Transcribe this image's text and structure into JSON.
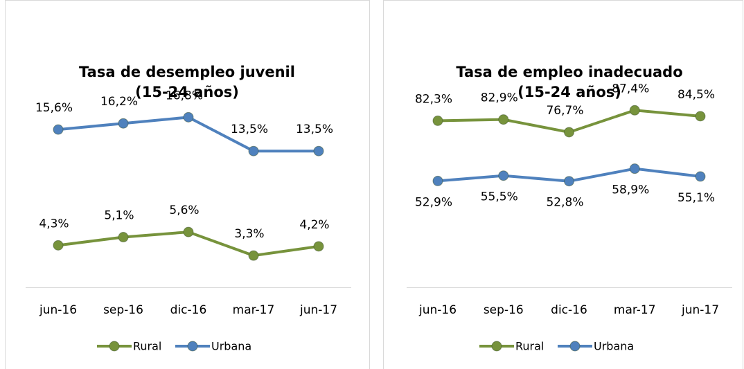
{
  "chart_data": [
    {
      "type": "line",
      "title": [
        "Tasa de desempleo juvenil",
        "(15-24 años)"
      ],
      "categories": [
        "jun-16",
        "sep-16",
        "dic-16",
        "mar-17",
        "jun-17"
      ],
      "ylim": [
        0,
        20
      ],
      "series": [
        {
          "name": "Rural",
          "color": "#77933c",
          "values": [
            4.3,
            5.1,
            5.6,
            3.3,
            4.2
          ],
          "value_labels": [
            "4,3%",
            "5,1%",
            "5,6%",
            "3,3%",
            "4,2%"
          ]
        },
        {
          "name": "Urbana",
          "color": "#4f81bd",
          "values": [
            15.6,
            16.2,
            16.8,
            13.5,
            13.5
          ],
          "value_labels": [
            "15,6%",
            "16,2%",
            "16,8%",
            "13,5%",
            "13,5%"
          ]
        }
      ]
    },
    {
      "type": "line",
      "title": [
        "Tasa de empleo inadecuado",
        "(15-24 años)"
      ],
      "categories": [
        "jun-16",
        "sep-16",
        "dic-16",
        "mar-17",
        "jun-17"
      ],
      "ylim": [
        0,
        100
      ],
      "series": [
        {
          "name": "Rural",
          "color": "#77933c",
          "values": [
            82.3,
            82.9,
            76.7,
            87.4,
            84.5
          ],
          "value_labels": [
            "82,3%",
            "82,9%",
            "76,7%",
            "87,4%",
            "84,5%"
          ]
        },
        {
          "name": "Urbana",
          "color": "#4f81bd",
          "values": [
            52.9,
            55.5,
            52.8,
            58.9,
            55.1
          ],
          "value_labels": [
            "52,9%",
            "55,5%",
            "52,8%",
            "58,9%",
            "55,1%"
          ]
        }
      ]
    }
  ]
}
